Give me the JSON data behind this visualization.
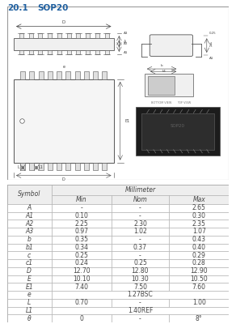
{
  "title_num": "20.1",
  "title_text": "SOP20",
  "title_color": "#2060a0",
  "table_header": "Millimeter",
  "col_headers": [
    "Symbol",
    "Min",
    "Nom",
    "Max"
  ],
  "rows": [
    [
      "A",
      "-",
      "-",
      "2.65"
    ],
    [
      "A1",
      "0.10",
      "-",
      "0.30"
    ],
    [
      "A2",
      "2.25",
      "2.30",
      "2.35"
    ],
    [
      "A3",
      "0.97",
      "1.02",
      "1.07"
    ],
    [
      "b",
      "0.35",
      "-",
      "0.43"
    ],
    [
      "b1",
      "0.34",
      "0.37",
      "0.40"
    ],
    [
      "c",
      "0.25",
      "-",
      "0.29"
    ],
    [
      "c1",
      "0.24",
      "0.25",
      "0.28"
    ],
    [
      "D",
      "12.70",
      "12.80",
      "12.90"
    ],
    [
      "E",
      "10.10",
      "10.30",
      "10.50"
    ],
    [
      "E1",
      "7.40",
      "7.50",
      "7.60"
    ],
    [
      "e",
      "1.27BSC",
      "",
      ""
    ],
    [
      "L",
      "0.70",
      "-",
      "1.00"
    ],
    [
      "L1",
      "1.40REF",
      "",
      ""
    ],
    [
      "θ",
      "0",
      "-",
      "8°"
    ]
  ],
  "bg_color": "#ffffff",
  "diag_bg": "#ffffff",
  "diag_border": "#999999",
  "line_color": "#555555",
  "text_color": "#444444",
  "table_line": "#aaaaaa",
  "header_bg": "#eeeeee"
}
